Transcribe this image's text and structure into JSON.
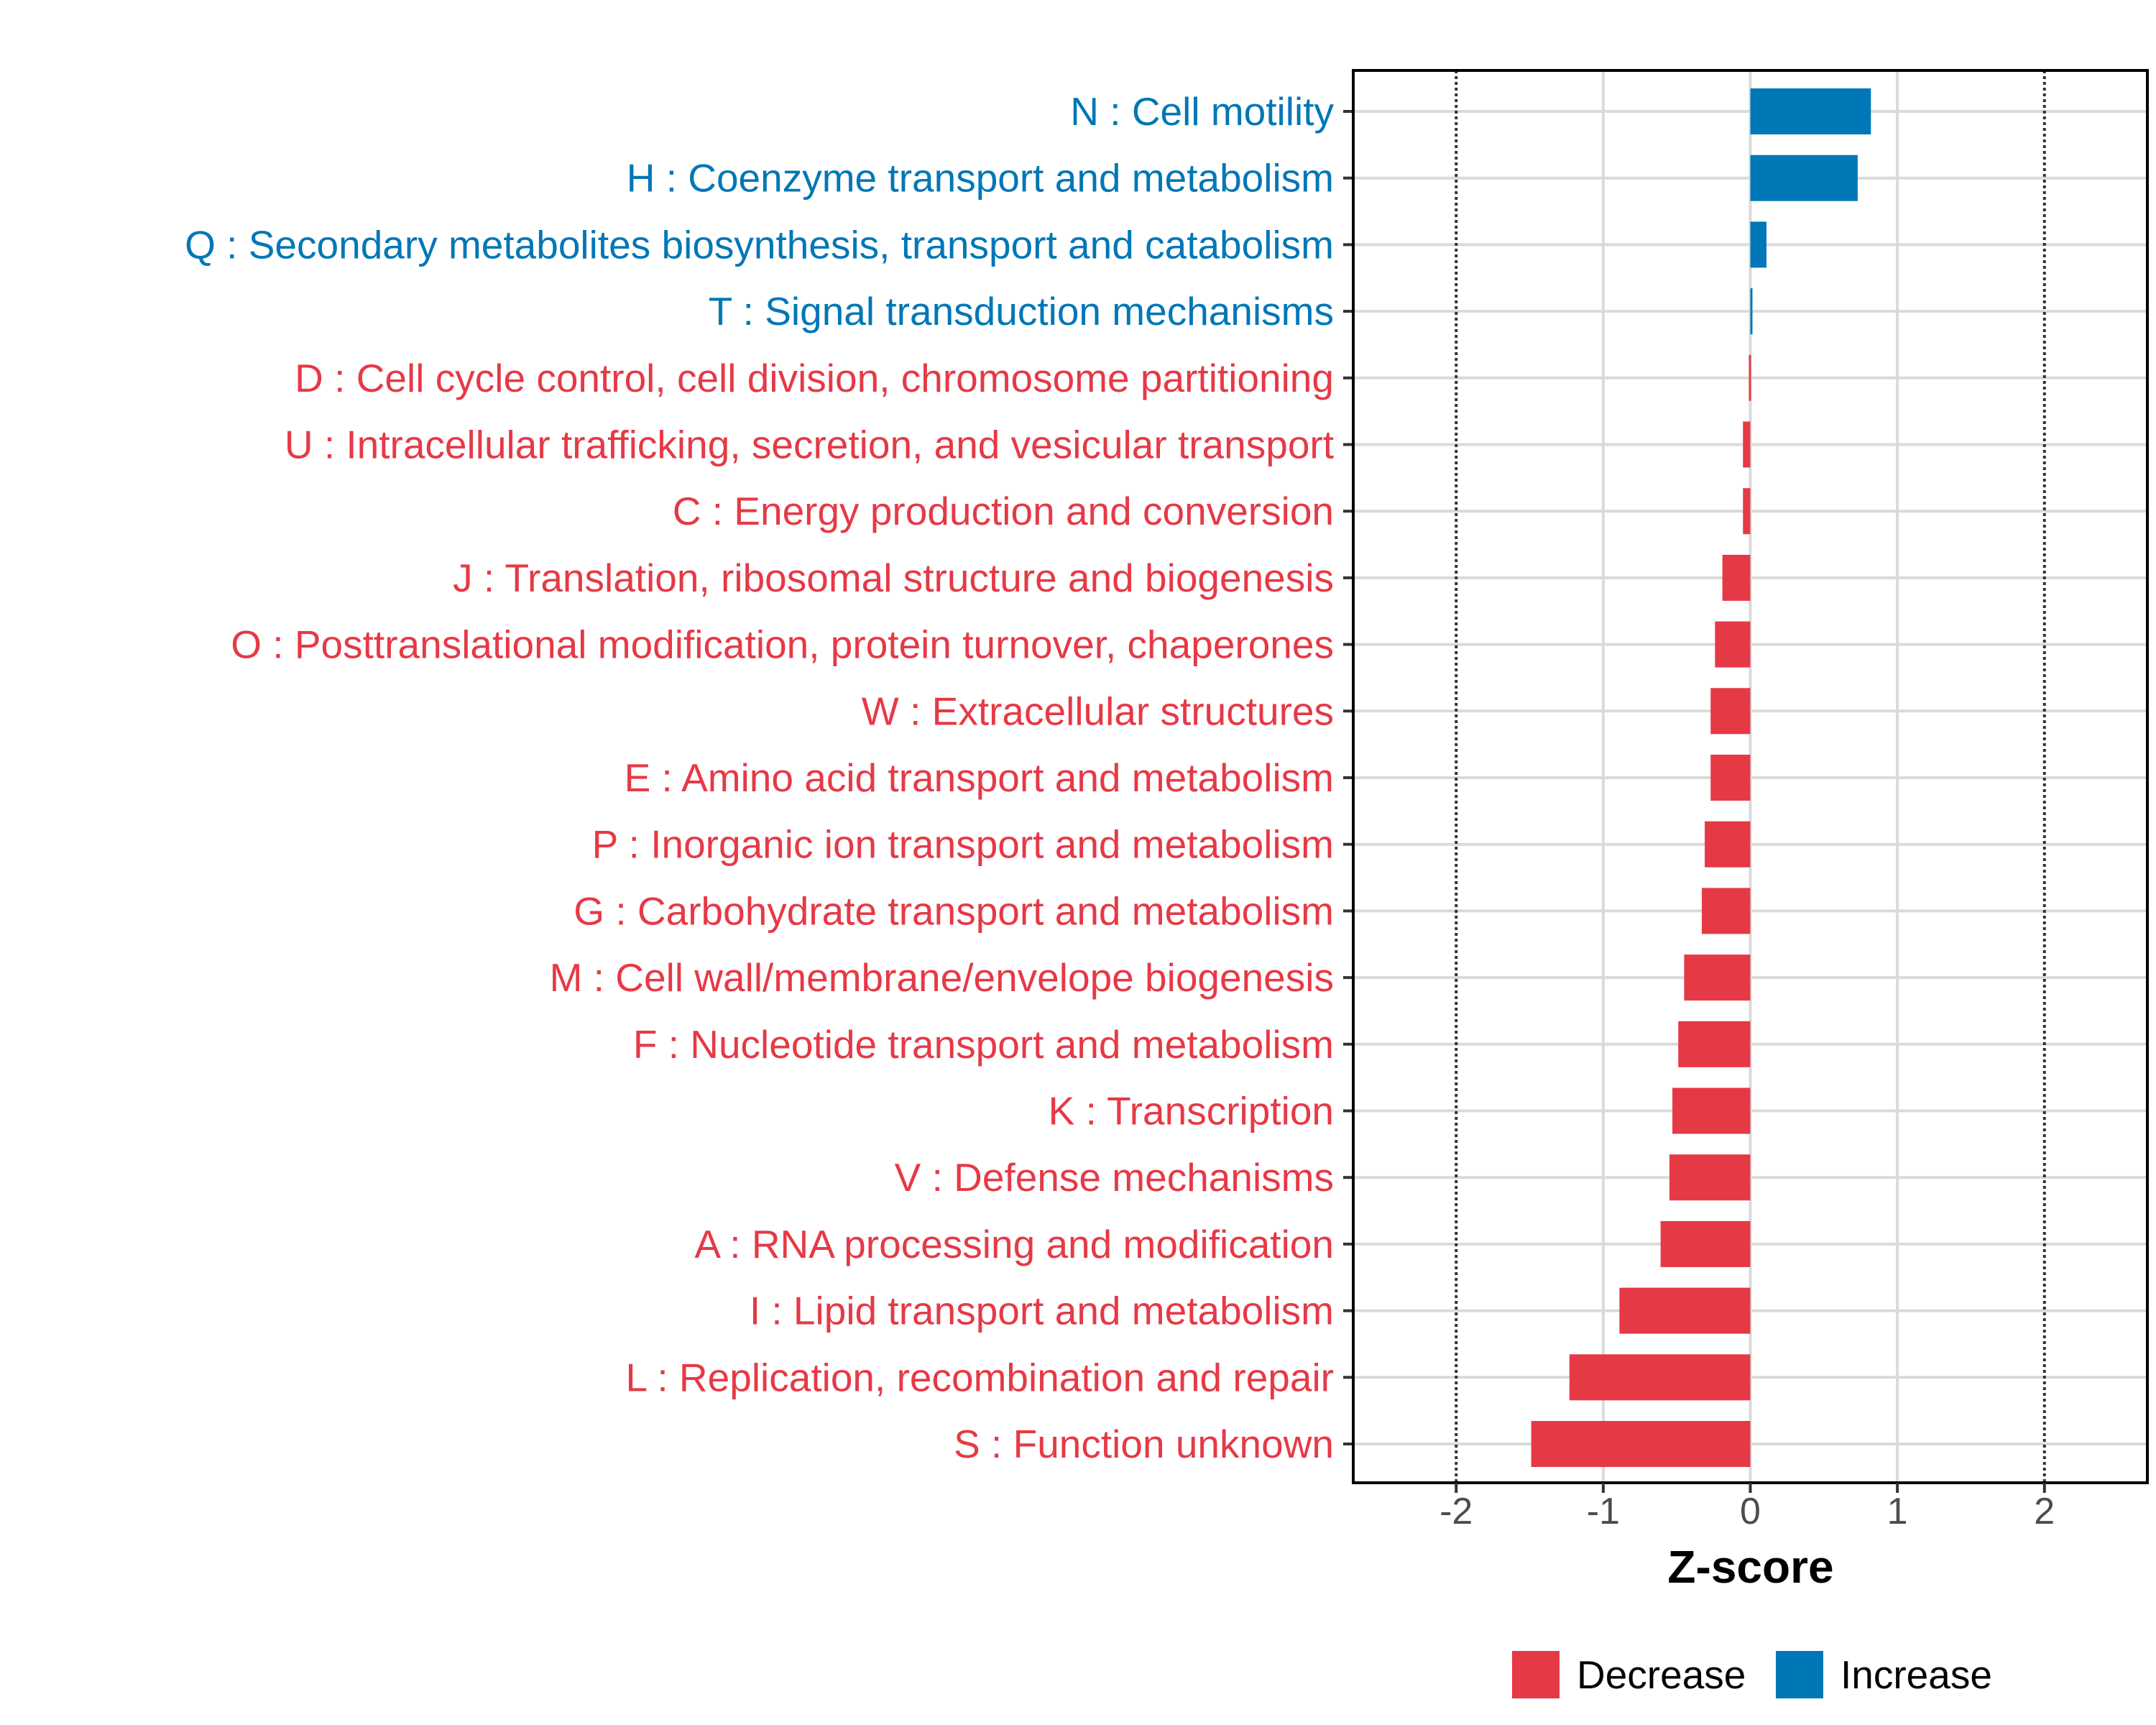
{
  "chart_data": {
    "type": "bar",
    "orientation": "horizontal",
    "xlabel": "Z-score",
    "ylabel": "",
    "xlim": [
      -2.7,
      2.7
    ],
    "xticks": [
      -2,
      -1,
      0,
      1,
      2
    ],
    "tick_labels": [
      "-2",
      "-1",
      "0",
      "1",
      "2"
    ],
    "reference_lines": [
      -2,
      2
    ],
    "grid": true,
    "legend_position": "bottom",
    "legend": [
      {
        "name": "Decrease",
        "color": "#E63946"
      },
      {
        "name": "Increase",
        "color": "#0077B6"
      }
    ],
    "categories": [
      "N : Cell motility",
      "H : Coenzyme transport and metabolism",
      "Q : Secondary metabolites biosynthesis, transport and catabolism",
      "T : Signal transduction mechanisms",
      "D : Cell cycle control, cell division, chromosome partitioning",
      "U : Intracellular trafficking, secretion, and vesicular transport",
      "C : Energy production and conversion",
      "J : Translation, ribosomal structure and biogenesis",
      "O : Posttranslational modification, protein turnover, chaperones",
      "W : Extracellular structures",
      "E : Amino acid transport and metabolism",
      "P : Inorganic ion transport and metabolism",
      "G : Carbohydrate transport and metabolism",
      "M : Cell wall/membrane/envelope biogenesis",
      "F : Nucleotide transport and metabolism",
      "K : Transcription",
      "V : Defense mechanisms",
      "A : RNA processing and modification",
      "I : Lipid transport and metabolism",
      "L : Replication, recombination and repair",
      "S : Function unknown"
    ],
    "values": [
      0.82,
      0.73,
      0.11,
      0.01,
      -0.01,
      -0.05,
      -0.05,
      -0.19,
      -0.24,
      -0.27,
      -0.27,
      -0.31,
      -0.33,
      -0.45,
      -0.49,
      -0.53,
      -0.55,
      -0.61,
      -0.89,
      -1.23,
      -1.49
    ]
  }
}
